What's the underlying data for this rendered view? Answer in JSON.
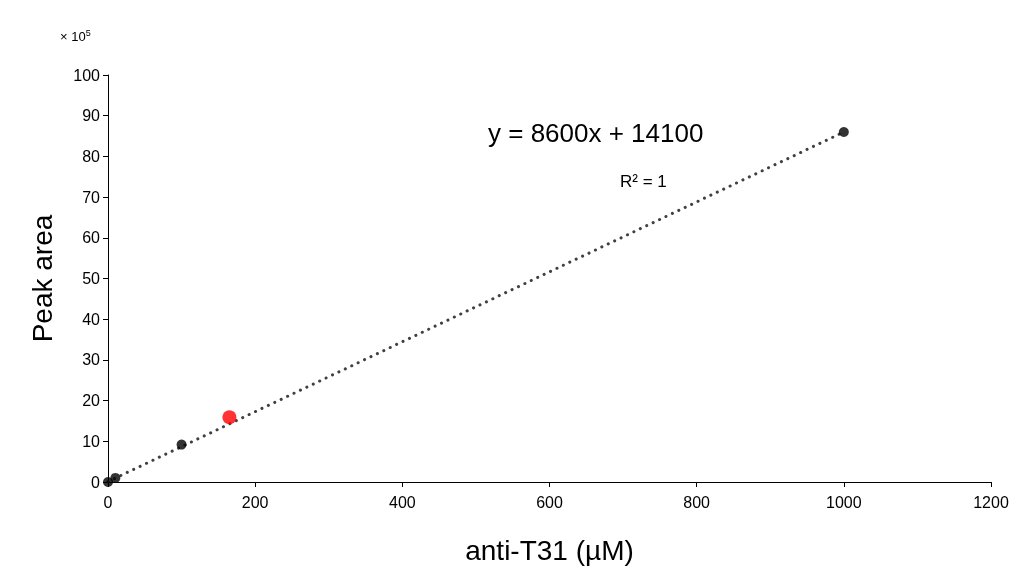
{
  "chart_data": {
    "type": "scatter",
    "xlabel": "anti-T31 (µM)",
    "ylabel": "Peak area",
    "xlim": [
      0,
      1200
    ],
    "xticks": [
      0,
      200,
      400,
      600,
      800,
      1000,
      1200
    ],
    "ylim": [
      0,
      100
    ],
    "yticks": [
      0,
      10,
      20,
      30,
      40,
      50,
      60,
      70,
      80,
      90,
      100
    ],
    "grid": false,
    "marker": "circle",
    "annotations": [
      "× 10$^{5}$",
      "y = 8600x + 14100",
      "R² = 1"
    ],
    "series": [
      {
        "type": "line",
        "color": "#404040",
        "line_style": "dotted",
        "marker": "none",
        "x": [
          0,
          1000
        ],
        "values": [
          0.1,
          86
        ]
      },
      {
        "color": "#000000",
        "x": [
          0,
          10,
          100,
          1000
        ],
        "values": [
          0,
          1,
          9.2,
          86
        ]
      },
      {
        "color": "#ff0000",
        "x": [
          165
        ],
        "values": [
          15.9
        ]
      }
    ]
  }
}
